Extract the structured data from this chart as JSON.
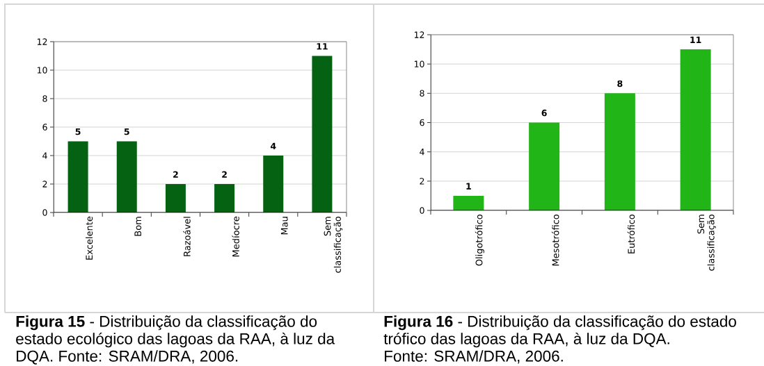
{
  "chart_data": [
    {
      "type": "bar",
      "categories": [
        "Excelente",
        "Bom",
        "Razoável",
        "Medíocre",
        "Mau",
        "Sem classificação"
      ],
      "values": [
        5,
        5,
        2,
        2,
        4,
        11
      ],
      "color": "#056212",
      "ylim": [
        0,
        12
      ],
      "yticks": [
        0,
        2,
        4,
        6,
        8,
        10,
        12
      ],
      "grid": "y",
      "data_labels": true,
      "annotations": [
        "**Figura 15** - Distribuição da classificação do estado ecológico das lagoas da RAA, à luz da DQA. Fonte: SRAM/DRA, 2006."
      ]
    },
    {
      "type": "bar",
      "categories": [
        "Oligotrófico",
        "Mesotrófico",
        "Eutrófico",
        "Sem classificação"
      ],
      "values": [
        1,
        6,
        8,
        11
      ],
      "color": "#21b518",
      "ylim": [
        0,
        12
      ],
      "yticks": [
        0,
        2,
        4,
        6,
        8,
        10,
        12
      ],
      "grid": "y",
      "data_labels": true,
      "annotations": [
        "**Figura 16** - Distribuição da classificação do estado trófico das lagoas da RAA, à luz da DQA.",
        "Fonte: SRAM/DRA, 2006."
      ]
    }
  ]
}
